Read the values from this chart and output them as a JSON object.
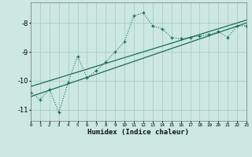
{
  "xlabel": "Humidex (Indice chaleur)",
  "bg_color": "#cce8e0",
  "grid_color": "#aacfc8",
  "line_color": "#1a6b5a",
  "x_min": 0,
  "x_max": 23,
  "y_min": -11.4,
  "y_max": -7.3,
  "yticks": [
    -11,
    -10,
    -9,
    -8
  ],
  "xticks": [
    0,
    1,
    2,
    3,
    4,
    5,
    6,
    7,
    8,
    9,
    10,
    11,
    12,
    13,
    14,
    15,
    16,
    17,
    18,
    19,
    20,
    21,
    22,
    23
  ],
  "series1_x": [
    0,
    1,
    2,
    3,
    4,
    5,
    6,
    7,
    8,
    9,
    10,
    11,
    12,
    13,
    14,
    15,
    16,
    17,
    18,
    19,
    20,
    21,
    22,
    23
  ],
  "series1_y": [
    -10.4,
    -10.65,
    -10.3,
    -11.1,
    -10.05,
    -9.15,
    -9.9,
    -9.65,
    -9.35,
    -9.0,
    -8.65,
    -7.75,
    -7.65,
    -8.1,
    -8.2,
    -8.5,
    -8.55,
    -8.5,
    -8.45,
    -8.4,
    -8.3,
    -8.5,
    -8.1,
    -8.1
  ],
  "line1_x": [
    0,
    23
  ],
  "line1_y": [
    -10.55,
    -8.0
  ],
  "line2_x": [
    0,
    23
  ],
  "line2_y": [
    -10.2,
    -7.9
  ]
}
